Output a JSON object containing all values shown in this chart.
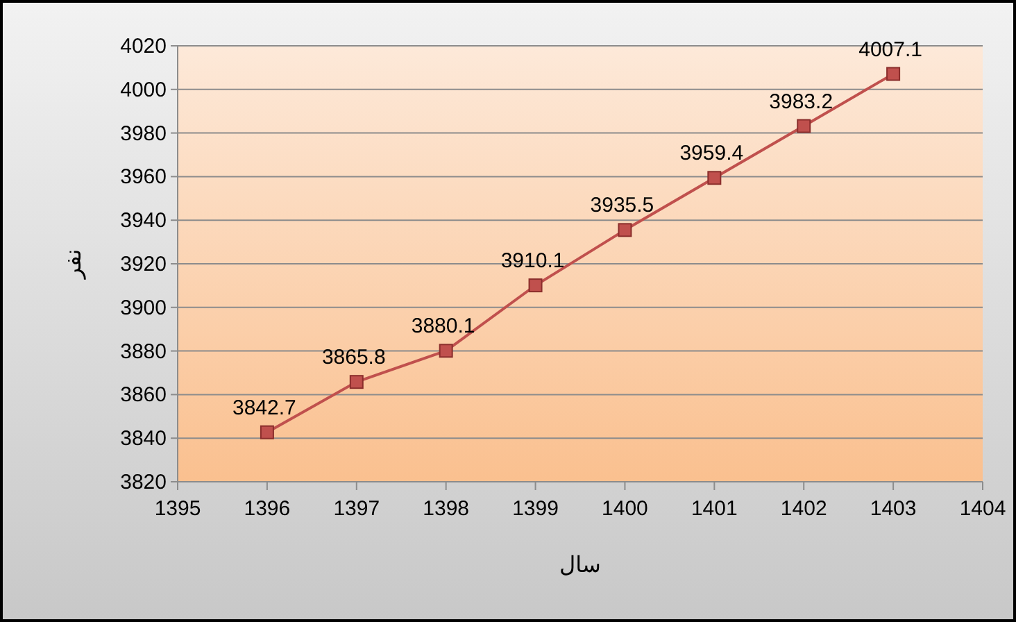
{
  "chart_data": {
    "type": "line",
    "xlabel": "سال",
    "ylabel": "نفر",
    "x": [
      1396,
      1397,
      1398,
      1399,
      1400,
      1401,
      1402,
      1403
    ],
    "series": [
      {
        "color": "#c0504d",
        "values": [
          3842.7,
          3865.8,
          3880.1,
          3910.1,
          3935.5,
          3959.4,
          3983.2,
          4007.1
        ]
      }
    ],
    "xlim": [
      1395,
      1404
    ],
    "xticks": [
      1395,
      1396,
      1397,
      1398,
      1399,
      1400,
      1401,
      1402,
      1403,
      1404
    ],
    "ylim": [
      3820,
      4020
    ],
    "yticks": [
      3820,
      3840,
      3860,
      3880,
      3900,
      3920,
      3940,
      3960,
      3980,
      4000,
      4020
    ],
    "grid": "y",
    "marker": "square",
    "line_style": "solid",
    "data_labels": true
  }
}
